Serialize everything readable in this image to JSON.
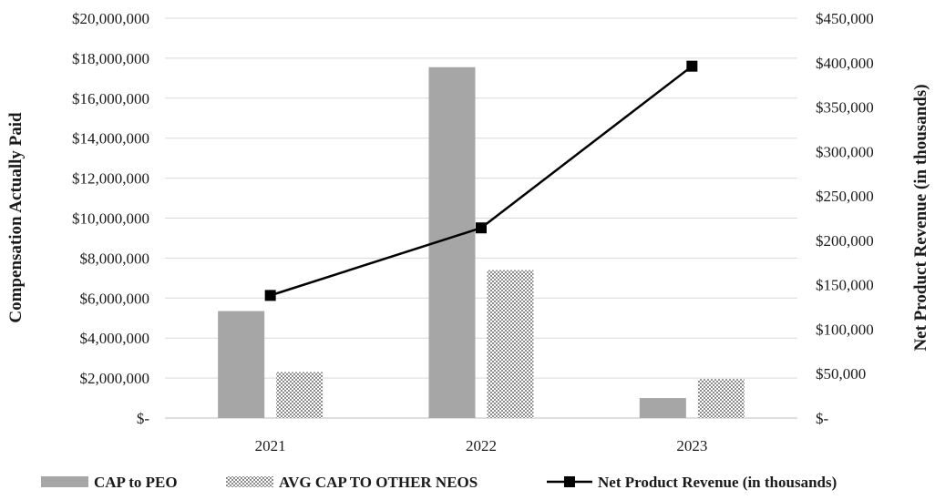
{
  "chart_data": {
    "type": "bar",
    "categories": [
      "2021",
      "2022",
      "2023"
    ],
    "series": [
      {
        "name": "CAP to PEO",
        "type": "bar",
        "axis": "left",
        "values": [
          5350000,
          17550000,
          1000000
        ],
        "color": "#a6a6a6"
      },
      {
        "name": "AVG CAP TO OTHER NEOS",
        "type": "bar",
        "axis": "left",
        "values": [
          2300000,
          7400000,
          1950000
        ],
        "color": "#8c8c8c"
      },
      {
        "name": "Net Product Revenue (in thousands)",
        "type": "line",
        "axis": "right",
        "values": [
          138000,
          214000,
          396000
        ],
        "color": "#000000"
      }
    ],
    "ylabel": "Compensation Actually Paid",
    "y2label": "Net Product Revenue (in thousands)",
    "ylim": [
      0,
      20000000
    ],
    "y2lim": [
      0,
      450000
    ],
    "yticks": [
      "$-",
      "$2,000,000",
      "$4,000,000",
      "$6,000,000",
      "$8,000,000",
      "$10,000,000",
      "$12,000,000",
      "$14,000,000",
      "$16,000,000",
      "$18,000,000",
      "$20,000,000"
    ],
    "y2ticks": [
      "$-",
      "$50,000",
      "$100,000",
      "$150,000",
      "$200,000",
      "$250,000",
      "$300,000",
      "$350,000",
      "$400,000",
      "$450,000"
    ],
    "grid": true,
    "legend": "bottom"
  }
}
